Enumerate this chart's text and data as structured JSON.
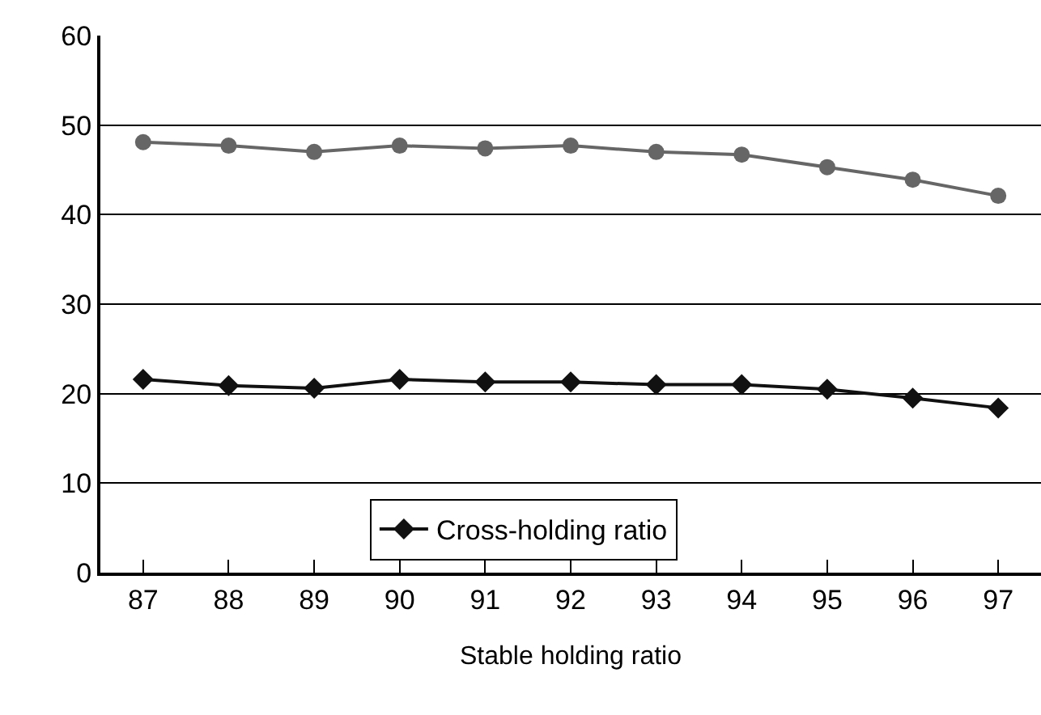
{
  "chart_data": {
    "type": "line",
    "xlabel": "Stable holding ratio",
    "categories": [
      "87",
      "88",
      "89",
      "90",
      "91",
      "92",
      "93",
      "94",
      "95",
      "96",
      "97"
    ],
    "series": [
      {
        "color": "#666666",
        "marker": "circle",
        "values": [
          48.1,
          47.7,
          47.0,
          47.7,
          47.4,
          47.7,
          47.0,
          46.7,
          45.3,
          43.9,
          42.1
        ]
      },
      {
        "name": "Cross-holding ratio",
        "color": "#111111",
        "marker": "diamond",
        "values": [
          21.6,
          20.9,
          20.6,
          21.6,
          21.3,
          21.3,
          21.0,
          21.0,
          20.5,
          19.5,
          18.4
        ]
      }
    ],
    "ylim": [
      0,
      60
    ],
    "yticks": [
      0,
      10,
      20,
      30,
      40,
      50,
      60
    ],
    "grid": "y",
    "legend": "bottom",
    "line_style": "solid"
  }
}
